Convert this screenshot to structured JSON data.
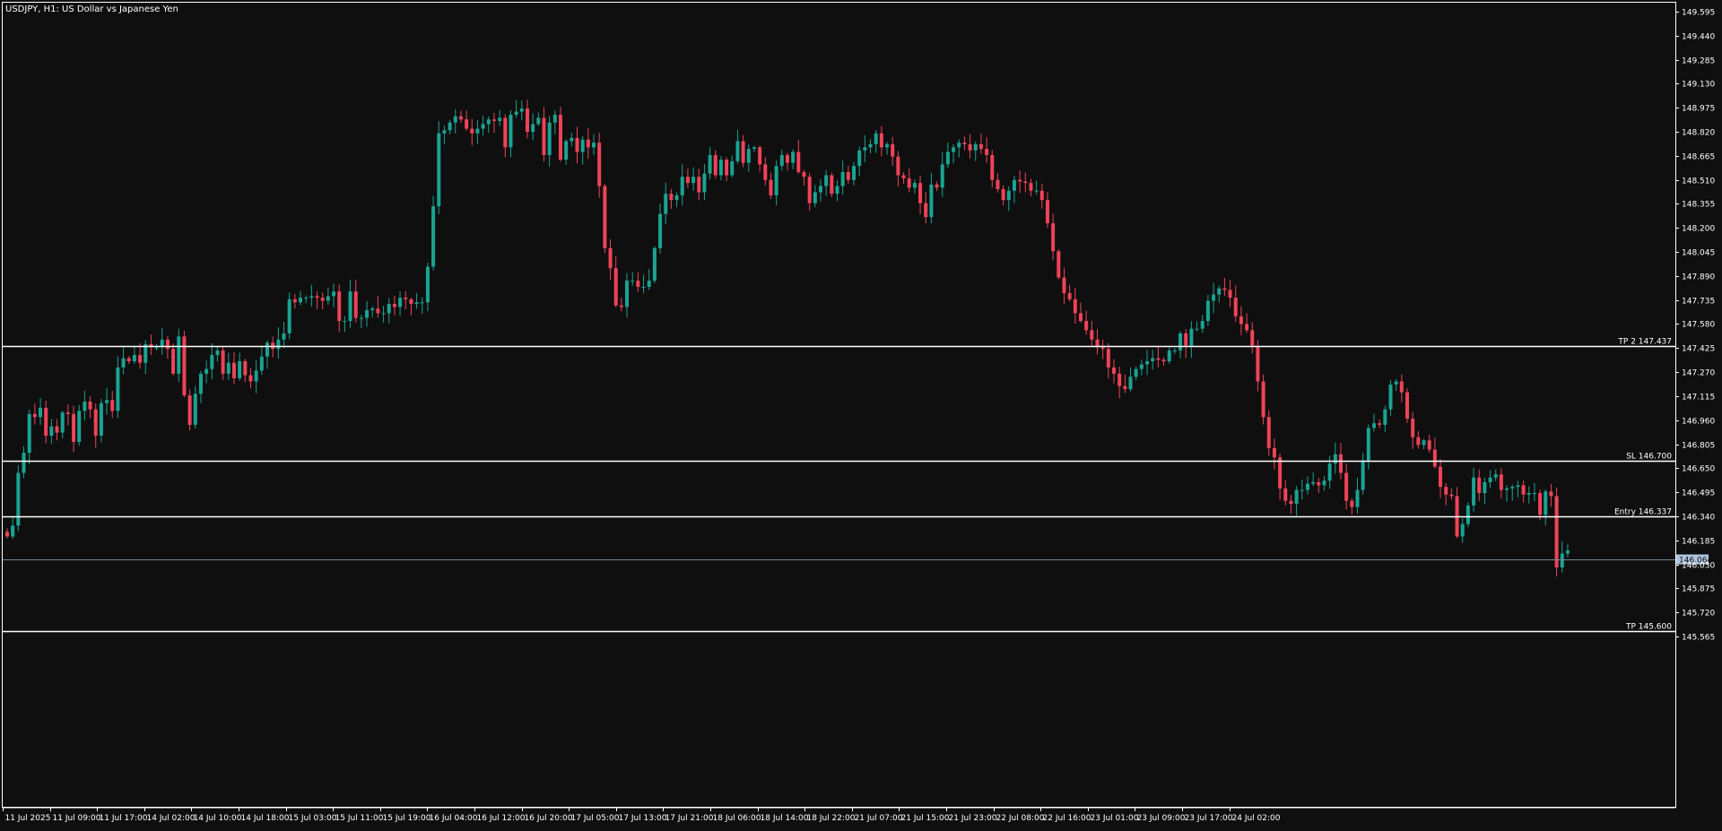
{
  "title": "USDJPY, H1:  US Dollar vs Japanese Yen",
  "colors": {
    "background": "#0f0f0f",
    "foreground": "#ffffff",
    "bull": "#1aa392",
    "bear": "#ef4358",
    "level_line": "#ffffff",
    "bid_line": "#758696",
    "bid_label_bg": "#b0c4de",
    "bid_label_text": "#0f0f0f"
  },
  "chart_data": {
    "type": "candlestick",
    "symbol": "USDJPY",
    "timeframe": "H1",
    "ylim": [
      145.5,
      149.6
    ],
    "y_ticks": [
      "149.595",
      "149.440",
      "149.285",
      "149.130",
      "148.975",
      "148.820",
      "148.665",
      "148.510",
      "148.355",
      "148.200",
      "148.045",
      "147.890",
      "147.735",
      "147.580",
      "147.425",
      "147.270",
      "147.115",
      "146.960",
      "146.805",
      "146.650",
      "146.495",
      "146.340",
      "146.185",
      "146.030",
      "145.875",
      "145.720",
      "145.565"
    ],
    "x_ticks": [
      "11 Jul 2025",
      "11 Jul 09:00",
      "11 Jul 17:00",
      "14 Jul 02:00",
      "14 Jul 10:00",
      "14 Jul 18:00",
      "15 Jul 03:00",
      "15 Jul 11:00",
      "15 Jul 19:00",
      "16 Jul 04:00",
      "16 Jul 12:00",
      "16 Jul 20:00",
      "17 Jul 05:00",
      "17 Jul 13:00",
      "17 Jul 21:00",
      "18 Jul 06:00",
      "18 Jul 14:00",
      "18 Jul 22:00",
      "21 Jul 07:00",
      "21 Jul 15:00",
      "21 Jul 23:00",
      "22 Jul 08:00",
      "22 Jul 16:00",
      "23 Jul 01:00",
      "23 Jul 09:00",
      "23 Jul 17:00",
      "24 Jul 02:00"
    ],
    "closes": [
      146.21,
      146.28,
      146.62,
      146.75,
      147.0,
      146.98,
      147.04,
      146.86,
      146.92,
      146.88,
      147.01,
      147.0,
      146.82,
      147.02,
      147.08,
      147.03,
      146.86,
      147.07,
      147.09,
      147.02,
      147.3,
      147.36,
      147.34,
      147.38,
      147.33,
      147.45,
      147.43,
      147.43,
      147.48,
      147.42,
      147.26,
      147.5,
      147.12,
      146.93,
      147.13,
      147.26,
      147.29,
      147.38,
      147.41,
      147.26,
      147.33,
      147.23,
      147.34,
      147.25,
      147.21,
      147.28,
      147.37,
      147.46,
      147.42,
      147.48,
      147.52,
      147.74,
      147.72,
      147.75,
      147.75,
      147.76,
      147.75,
      147.73,
      147.76,
      147.79,
      147.6,
      147.6,
      147.79,
      147.62,
      147.62,
      147.67,
      147.68,
      147.65,
      147.65,
      147.71,
      147.69,
      147.75,
      147.74,
      147.71,
      147.72,
      147.72,
      147.95,
      148.34,
      148.81,
      148.83,
      148.88,
      148.92,
      148.9,
      148.84,
      148.81,
      148.84,
      148.87,
      148.9,
      148.89,
      148.91,
      148.72,
      148.93,
      148.95,
      148.97,
      148.82,
      148.87,
      148.91,
      148.67,
      148.88,
      148.93,
      148.64,
      148.76,
      148.78,
      148.69,
      148.77,
      148.72,
      148.75,
      148.47,
      148.07,
      147.94,
      147.7,
      147.69,
      147.86,
      147.86,
      147.82,
      147.82,
      147.86,
      148.07,
      148.29,
      148.42,
      148.38,
      148.41,
      148.53,
      148.49,
      148.53,
      148.43,
      148.55,
      148.67,
      148.54,
      148.64,
      148.54,
      148.63,
      148.76,
      148.62,
      148.71,
      148.72,
      148.61,
      148.51,
      148.41,
      148.6,
      148.67,
      148.62,
      148.69,
      148.56,
      148.53,
      148.36,
      148.43,
      148.47,
      148.54,
      148.42,
      148.47,
      148.56,
      148.51,
      148.6,
      148.7,
      148.72,
      148.74,
      148.81,
      148.72,
      148.74,
      148.66,
      148.54,
      148.52,
      148.46,
      148.49,
      148.36,
      148.27,
      148.48,
      148.46,
      148.61,
      148.69,
      148.72,
      148.75,
      148.74,
      148.7,
      148.74,
      148.71,
      148.67,
      148.51,
      148.45,
      148.38,
      148.44,
      148.51,
      148.5,
      148.49,
      148.44,
      148.44,
      148.38,
      148.23,
      148.05,
      147.88,
      147.78,
      147.74,
      147.65,
      147.6,
      147.54,
      147.48,
      147.43,
      147.42,
      147.3,
      147.26,
      147.18,
      147.16,
      147.24,
      147.29,
      147.32,
      147.34,
      147.36,
      147.35,
      147.34,
      147.41,
      147.41,
      147.52,
      147.44,
      147.55,
      147.55,
      147.6,
      147.73,
      147.77,
      147.81,
      147.8,
      147.75,
      147.63,
      147.58,
      147.54,
      147.44,
      147.21,
      146.98,
      146.78,
      146.72,
      146.52,
      146.44,
      146.42,
      146.51,
      146.51,
      146.55,
      146.56,
      146.54,
      146.57,
      146.68,
      146.74,
      146.62,
      146.44,
      146.4,
      146.51,
      146.7,
      146.91,
      146.94,
      146.93,
      147.03,
      147.19,
      147.21,
      147.14,
      146.97,
      146.85,
      146.8,
      146.83,
      146.77,
      146.66,
      146.53,
      146.48,
      146.47,
      146.21,
      146.29,
      146.41,
      146.59,
      146.49,
      146.56,
      146.59,
      146.61,
      146.51,
      146.52,
      146.53,
      146.54,
      146.48,
      146.49,
      146.49,
      146.35,
      146.5,
      146.47,
      146.01,
      146.1,
      146.12
    ],
    "levels": [
      {
        "label": "TP 2 147.437",
        "price": 147.437
      },
      {
        "label": "SL 146.700",
        "price": 146.7
      },
      {
        "label": "Entry  146.337",
        "price": 146.337
      },
      {
        "label": "TP  145.600",
        "price": 145.6
      }
    ],
    "current_price": {
      "label": "146.064",
      "price": 146.064
    }
  }
}
